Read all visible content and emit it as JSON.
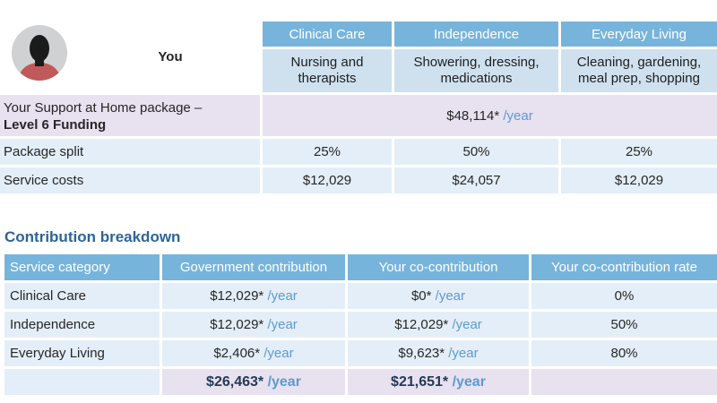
{
  "top": {
    "you_label": "You",
    "columns": [
      {
        "name": "Clinical Care",
        "desc": "Nursing and therapists"
      },
      {
        "name": "Independence",
        "desc": "Showering, dressing, medications"
      },
      {
        "name": "Everyday Living",
        "desc": "Cleaning, gardening, meal prep, shopping"
      }
    ],
    "package": {
      "label_line1": "Your Support at Home package –",
      "label_line2": "Level 6 Funding",
      "amount": "$48,114*",
      "unit": "/year"
    },
    "split": {
      "label": "Package split",
      "values": [
        "25%",
        "50%",
        "25%"
      ]
    },
    "costs": {
      "label": "Service costs",
      "values": [
        "$12,029",
        "$24,057",
        "$12,029"
      ]
    }
  },
  "breakdown": {
    "title": "Contribution breakdown",
    "headers": [
      "Service category",
      "Government contribution",
      "Your co-contribution",
      "Your co-contribution rate"
    ],
    "unit": "/year",
    "rows": [
      {
        "category": "Clinical Care",
        "gov": "$12,029*",
        "co": "$0*",
        "rate": "0%"
      },
      {
        "category": "Independence",
        "gov": "$12,029*",
        "co": "$12,029*",
        "rate": "50%"
      },
      {
        "category": "Everyday Living",
        "gov": "$2,406*",
        "co": "$9,623*",
        "rate": "80%"
      }
    ],
    "totals": {
      "gov": "$26,463*",
      "co": "$21,651*"
    }
  },
  "colors": {
    "header_blue": "#77b4dc",
    "sub_blue": "#cfe1ee",
    "lilac": "#e8e1f0",
    "pale_blue": "#e4eef8",
    "title_blue": "#2f6496",
    "unit_blue": "#5b9bd1"
  }
}
